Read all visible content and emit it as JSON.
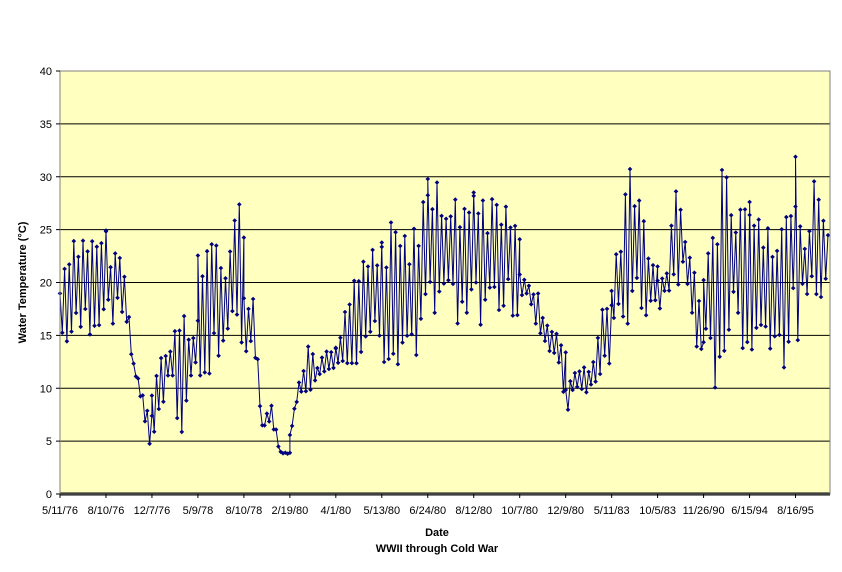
{
  "colors": {
    "plot_background": "#FFFFC0",
    "series": "#000080",
    "gridline": "#000000",
    "axis": "#000000"
  },
  "chart_data": {
    "type": "line",
    "marker": "diamond",
    "xlabel": "Date",
    "subtitle": "WWII through Cold War",
    "ylabel": "Water Temperature (°C)",
    "ylim": [
      0,
      40
    ],
    "y_ticks": [
      0,
      5,
      10,
      15,
      20,
      25,
      30,
      35,
      40
    ],
    "y_tick_labels": [
      "0",
      "5",
      "10",
      "15",
      "20",
      "25",
      "30",
      "35",
      "40"
    ],
    "x_tick_labels": [
      "5/11/76",
      "8/10/76",
      "12/7/76",
      "5/9/78",
      "8/10/78",
      "2/19/80",
      "4/1/80",
      "5/13/80",
      "6/24/80",
      "8/12/80",
      "10/7/80",
      "12/9/80",
      "5/11/83",
      "10/5/83",
      "11/26/90",
      "6/15/94",
      "8/16/95"
    ],
    "grid": "horizontal major gridlines",
    "legend": "none",
    "segments": [
      {
        "x_start": "5/11/76",
        "x_end": "8/10/76",
        "low_c": [
          14,
          13.5,
          14.5,
          15,
          16
        ],
        "high_c": [
          20,
          24,
          25,
          26,
          25.5
        ]
      },
      {
        "x_start": "8/10/76",
        "x_end": "12/7/76",
        "low_c": [
          15,
          16,
          16.5,
          12,
          8,
          3
        ],
        "high_c": [
          25,
          24,
          21.5,
          12.5,
          9.5,
          8
        ]
      },
      {
        "x_start": "12/7/76",
        "x_end": "5/9/78",
        "low_c": [
          2.5,
          7,
          12,
          4.5,
          8.5,
          13
        ],
        "high_c": [
          9.5,
          14,
          14,
          17.5,
          16.5,
          17
        ]
      },
      {
        "x_start": "5/9/78",
        "x_end": "8/10/78",
        "low_c": [
          8.5,
          9,
          13,
          8.5,
          15,
          12
        ],
        "high_c": [
          25.5,
          25.5,
          24,
          26.5,
          29,
          26
        ]
      },
      {
        "x_start": "8/10/78",
        "x_end": "2/19/80",
        "low_c": [
          12.5,
          13,
          6.5,
          6,
          3.8,
          3.8
        ],
        "high_c": [
          19,
          19,
          6.5,
          8.8,
          4,
          3.9
        ]
      },
      {
        "x_start": "2/19/80",
        "x_end": "4/1/80",
        "low_c": [
          5.2,
          9.5,
          9.5,
          10.5,
          11.5,
          12
        ],
        "high_c": [
          5.6,
          11,
          14,
          12.5,
          13.5,
          14
        ]
      },
      {
        "x_start": "4/1/80",
        "x_end": "5/13/80",
        "low_c": [
          12,
          12.5,
          12,
          12,
          12.5,
          12
        ],
        "high_c": [
          14,
          17.5,
          21.5,
          22,
          24.5,
          25
        ]
      },
      {
        "x_start": "5/13/80",
        "x_end": "6/24/80",
        "low_c": [
          12,
          12.5,
          12,
          12.5,
          12.5,
          13
        ],
        "high_c": [
          25,
          26,
          26.5,
          26,
          28.5,
          33
        ]
      },
      {
        "x_start": "6/24/80",
        "x_end": "8/12/80",
        "low_c": [
          13,
          15,
          15.5,
          16,
          15,
          15
        ],
        "high_c": [
          33,
          32.5,
          28.5,
          30,
          30.5,
          31
        ]
      },
      {
        "x_start": "8/12/80",
        "x_end": "10/7/80",
        "low_c": [
          15,
          16,
          17,
          16.5,
          17,
          16
        ],
        "high_c": [
          31,
          29.5,
          28.5,
          27.5,
          27,
          26.5
        ]
      },
      {
        "x_start": "10/7/80",
        "x_end": "12/9/80",
        "low_c": [
          18,
          18.5,
          15,
          13.5,
          13,
          8.5
        ],
        "high_c": [
          21,
          20,
          19.5,
          16,
          15.5,
          13.5
        ]
      },
      {
        "x_start": "12/9/80",
        "x_end": "5/11/83",
        "low_c": [
          6.5,
          10,
          9.5,
          9.5,
          11,
          12
        ],
        "high_c": [
          11,
          11.5,
          12,
          12.5,
          18,
          19.5
        ]
      },
      {
        "x_start": "5/11/83",
        "x_end": "10/5/83",
        "low_c": [
          13,
          15,
          15,
          16,
          16.5,
          17
        ],
        "high_c": [
          22,
          26,
          31.5,
          29,
          25,
          22
        ]
      },
      {
        "x_start": "10/5/83",
        "x_end": "11/26/90",
        "low_c": [
          17,
          18.5,
          19,
          20.5,
          14,
          13
        ],
        "high_c": [
          21,
          21.5,
          31,
          25,
          22,
          15
        ]
      },
      {
        "x_start": "11/26/90",
        "x_end": "6/15/94",
        "low_c": [
          12.5,
          9,
          11,
          14.5,
          13.5,
          13.5
        ],
        "high_c": [
          23,
          27,
          32.5,
          28,
          30,
          29
        ]
      },
      {
        "x_start": "6/15/94",
        "x_end": "8/16/95",
        "low_c": [
          12,
          13,
          14,
          13,
          11,
          14
        ],
        "high_c": [
          29.5,
          27,
          25.5,
          23,
          28,
          33
        ]
      },
      {
        "x_start": "8/16/95",
        "x_end": "end of record",
        "low_c": [
          14,
          16.5,
          17.5,
          20
        ],
        "high_c": [
          33,
          25,
          31.5,
          25
        ]
      }
    ]
  }
}
